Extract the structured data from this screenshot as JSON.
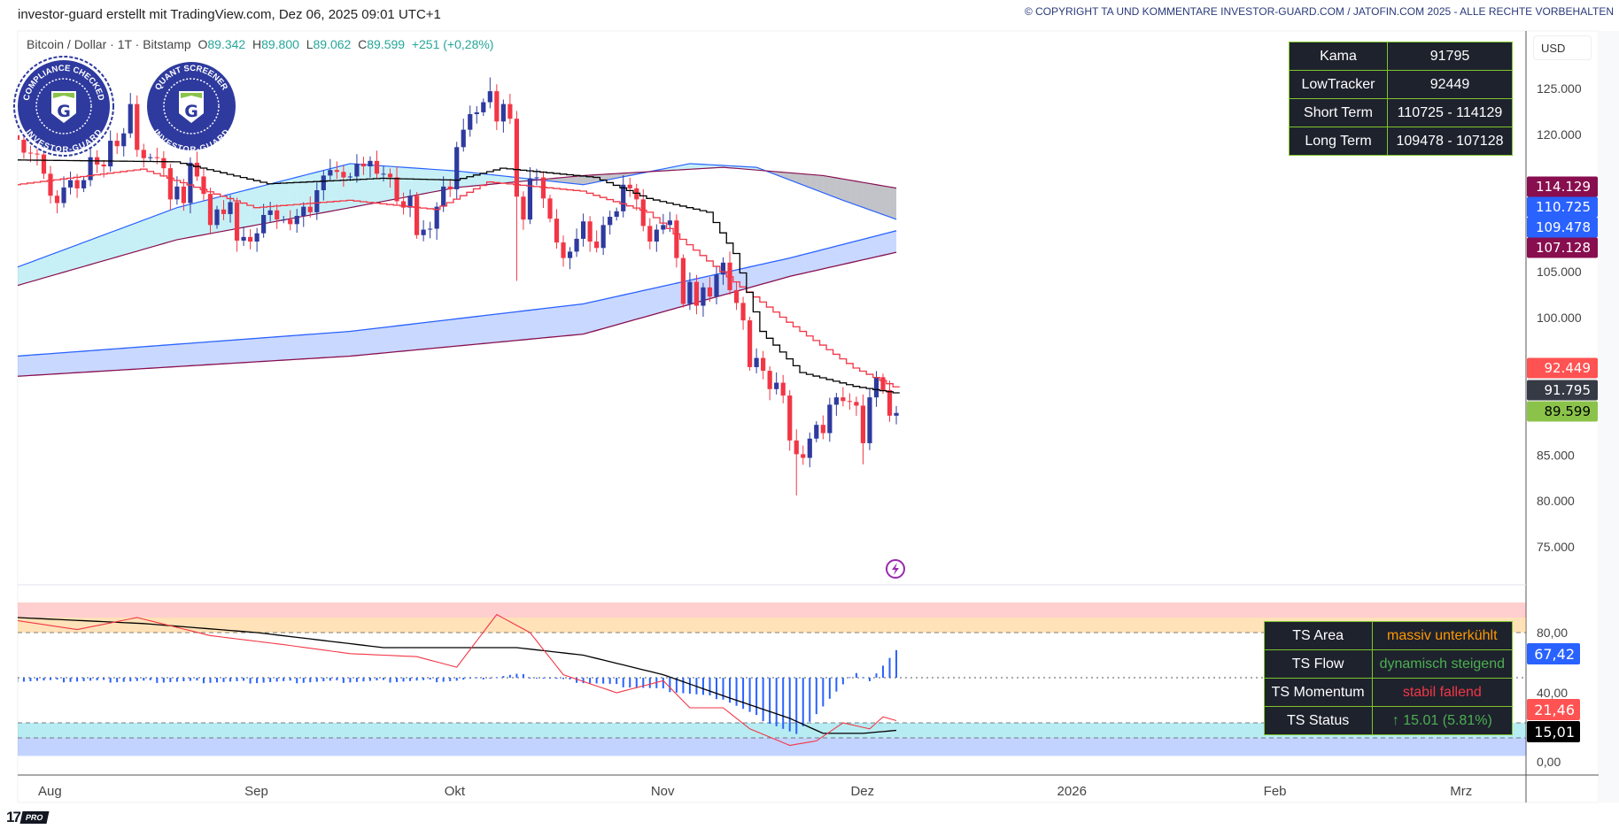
{
  "header": {
    "title": "investor-guard erstellt mit TradingView.com, Dez 06, 2025 09:01 UTC+1",
    "copyright": "© COPYRIGHT TA UND KOMMENTARE INVESTOR-GUARD.COM / JATOFIN.COM 2025 - ALLE RECHTE VORBEHALTEN"
  },
  "legend": {
    "symbol": "Bitcoin / Dollar · 1T · Bitstamp",
    "o_label": "O",
    "o": "89.342",
    "h_label": "H",
    "h": "89.800",
    "l_label": "L",
    "l": "89.062",
    "c_label": "C",
    "c": "89.599",
    "change": "+251 (+0,28%)"
  },
  "badges": {
    "compliance_top": "COMPLIANCE CHECKED",
    "compliance_bottom": "INVESTOR-GUARD",
    "quant_top": "QUANT SCREENER",
    "quant_bottom": "INVESTOR-GUARD",
    "letter": "G"
  },
  "info_table": [
    {
      "label": "Kama",
      "value": "91795"
    },
    {
      "label": "LowTracker",
      "value": "92449"
    },
    {
      "label": "Short Term",
      "value": "110725 - 114129"
    },
    {
      "label": "Long Term",
      "value": "109478 - 107128"
    }
  ],
  "ts_table": [
    {
      "label": "TS Area",
      "value": "massiv unterkühlt",
      "color": "#ff9800"
    },
    {
      "label": "TS Flow",
      "value": "dynamisch steigend",
      "color": "#4caf50"
    },
    {
      "label": "TS Momentum",
      "value": "stabil fallend",
      "color": "#f23645"
    },
    {
      "label": "TS Status",
      "value": "↑ 15.01 (5.81%)",
      "color": "#4caf50"
    }
  ],
  "price_axis": {
    "currency": "USD",
    "ticks": [
      {
        "label": "125.000",
        "value": 125
      },
      {
        "label": "120.000",
        "value": 120
      },
      {
        "label": "105.000",
        "value": 105
      },
      {
        "label": "100.000",
        "value": 100
      },
      {
        "label": "85.000",
        "value": 85
      },
      {
        "label": "80.000",
        "value": 80
      },
      {
        "label": "75.000",
        "value": 75
      }
    ],
    "markers": [
      {
        "label": "114.129",
        "value": 114.129,
        "bg": "#880e4f",
        "fg": "#ffffff"
      },
      {
        "label": "110.725",
        "value": 110.725,
        "bg": "#2962ff",
        "fg": "#ffffff"
      },
      {
        "label": "109.478",
        "value": 109.478,
        "bg": "#2962ff",
        "fg": "#ffffff"
      },
      {
        "label": "107.128",
        "value": 107.128,
        "bg": "#880e4f",
        "fg": "#ffffff"
      },
      {
        "label": "92.449",
        "value": 92.449,
        "bg": "#ff5252",
        "fg": "#ffffff"
      },
      {
        "label": "91.795",
        "value": 91.795,
        "bg": "#363a45",
        "fg": "#ffffff"
      },
      {
        "label": "89.599",
        "value": 89.599,
        "bg": "#8bc34a",
        "fg": "#000000"
      }
    ]
  },
  "indicator_axis": {
    "ticks": [
      {
        "label": "80,00",
        "value": 80
      },
      {
        "label": "40,00",
        "value": 40
      },
      {
        "label": "0,00",
        "value": 0
      }
    ],
    "markers": [
      {
        "label": "67,42",
        "value": 67.42,
        "bg": "#2962ff",
        "fg": "#ffffff"
      },
      {
        "label": "21,46",
        "value": 21.46,
        "bg": "#ff5252",
        "fg": "#ffffff"
      },
      {
        "label": "15,01",
        "value": 15.01,
        "bg": "#000000",
        "fg": "#ffffff"
      }
    ]
  },
  "time_axis": [
    {
      "label": "Aug",
      "date": "2025-08-01"
    },
    {
      "label": "Sep",
      "date": "2025-09-01"
    },
    {
      "label": "Okt",
      "date": "2025-10-01"
    },
    {
      "label": "Nov",
      "date": "2025-11-01"
    },
    {
      "label": "Dez",
      "date": "2025-12-01"
    },
    {
      "label": "2026",
      "date": "2026-01-01"
    },
    {
      "label": "Feb",
      "date": "2026-02-01"
    },
    {
      "label": "Mrz",
      "date": "2026-03-01"
    }
  ],
  "colors": {
    "up": "#2e3a9e",
    "down": "#f23645",
    "kama": "#000000",
    "lowtracker": "#f23645",
    "short_upper": "#2962ff",
    "short_lower": "#880e4f",
    "long_upper": "#2962ff",
    "long_lower": "#880e4f"
  },
  "chart_data": {
    "type": "candlestick",
    "unit": "USD (thousands)",
    "start_date": "2025-07-27",
    "closes": [
      119.4,
      118.0,
      117.9,
      117.8,
      115.7,
      113.3,
      112.5,
      114.2,
      115.0,
      114.1,
      115.0,
      117.5,
      116.7,
      116.5,
      119.3,
      118.7,
      120.1,
      123.3,
      118.3,
      117.4,
      117.5,
      117.4,
      116.3,
      112.9,
      114.3,
      112.5,
      116.9,
      115.4,
      113.5,
      110.1,
      111.8,
      111.3,
      112.6,
      108.4,
      108.8,
      108.3,
      109.2,
      111.2,
      111.7,
      110.7,
      110.7,
      110.2,
      111.1,
      112.1,
      111.5,
      113.9,
      115.5,
      116.1,
      115.9,
      115.3,
      115.4,
      116.8,
      116.5,
      117.1,
      115.7,
      115.7,
      115.3,
      112.7,
      112.0,
      113.3,
      109.0,
      109.6,
      109.7,
      112.1,
      114.3,
      114.0,
      118.6,
      120.5,
      122.2,
      122.4,
      123.5,
      124.7,
      121.4,
      123.3,
      121.7,
      113.2,
      110.7,
      115.2,
      115.3,
      113.0,
      110.8,
      108.2,
      106.5,
      107.2,
      108.6,
      110.5,
      108.3,
      107.6,
      110.1,
      111.0,
      111.6,
      114.5,
      114.1,
      112.9,
      110.0,
      108.3,
      109.6,
      110.1,
      110.6,
      106.5,
      101.5,
      103.9,
      101.3,
      103.3,
      102.3,
      104.7,
      106.0,
      103.0,
      101.6,
      99.7,
      94.6,
      95.6,
      94.2,
      92.2,
      92.9,
      91.5,
      86.6,
      85.1,
      84.7,
      86.8,
      88.3,
      87.4,
      90.5,
      91.3,
      90.9,
      90.8,
      90.4,
      86.3,
      91.3,
      93.5,
      92.1,
      89.3,
      89.6
    ],
    "notable_lows": {
      "2025-10-10": 104.0,
      "2025-11-21": 80.6,
      "2025-12-01": 84.0
    },
    "notable_highs": {
      "2025-10-06": 126.2
    },
    "kama": [
      [
        "2025-07-27",
        117.2
      ],
      [
        "2025-08-20",
        117.0
      ],
      [
        "2025-09-03",
        114.6
      ],
      [
        "2025-09-20",
        115.2
      ],
      [
        "2025-10-01",
        115.0
      ],
      [
        "2025-10-08",
        116.3
      ],
      [
        "2025-10-22",
        115.3
      ],
      [
        "2025-10-30",
        113.0
      ],
      [
        "2025-11-08",
        111.5
      ],
      [
        "2025-11-12",
        107.0
      ],
      [
        "2025-11-16",
        98.5
      ],
      [
        "2025-11-22",
        94.0
      ],
      [
        "2025-11-30",
        92.5
      ],
      [
        "2025-12-06",
        91.795
      ]
    ],
    "lowtracker": [
      [
        "2025-07-27",
        114.5
      ],
      [
        "2025-08-15",
        116.2
      ],
      [
        "2025-09-01",
        112.0
      ],
      [
        "2025-09-15",
        112.8
      ],
      [
        "2025-09-28",
        111.8
      ],
      [
        "2025-10-06",
        114.8
      ],
      [
        "2025-10-20",
        113.8
      ],
      [
        "2025-10-30",
        111.5
      ],
      [
        "2025-11-10",
        105.0
      ],
      [
        "2025-11-20",
        99.5
      ],
      [
        "2025-11-30",
        94.5
      ],
      [
        "2025-12-06",
        92.449
      ]
    ],
    "short_term_upper": [
      [
        "2025-07-27",
        105.5
      ],
      [
        "2025-08-20",
        112.0
      ],
      [
        "2025-09-15",
        116.8
      ],
      [
        "2025-10-01",
        116.0
      ],
      [
        "2025-10-20",
        114.5
      ],
      [
        "2025-11-05",
        116.8
      ],
      [
        "2025-11-15",
        116.4
      ],
      [
        "2025-11-28",
        112.8
      ],
      [
        "2025-12-06",
        110.725
      ]
    ],
    "short_term_lower": [
      [
        "2025-07-27",
        103.5
      ],
      [
        "2025-08-20",
        108.5
      ],
      [
        "2025-09-15",
        112.0
      ],
      [
        "2025-10-01",
        114.2
      ],
      [
        "2025-10-20",
        115.5
      ],
      [
        "2025-11-10",
        116.4
      ],
      [
        "2025-11-25",
        115.5
      ],
      [
        "2025-12-06",
        114.129
      ]
    ],
    "long_term_upper": [
      [
        "2025-07-27",
        95.8
      ],
      [
        "2025-09-15",
        98.5
      ],
      [
        "2025-10-20",
        101.5
      ],
      [
        "2025-11-20",
        106.5
      ],
      [
        "2025-12-06",
        109.478
      ]
    ],
    "long_term_lower": [
      [
        "2025-07-27",
        93.6
      ],
      [
        "2025-09-15",
        95.8
      ],
      [
        "2025-10-20",
        98.2
      ],
      [
        "2025-11-20",
        104.5
      ],
      [
        "2025-12-06",
        107.128
      ]
    ],
    "indicator": {
      "levels": {
        "overbought": 80,
        "mid": 50,
        "oversold": 20,
        "extreme_oversold": 10
      },
      "oscillator": [
        [
          "2025-07-27",
          88
        ],
        [
          "2025-08-05",
          82
        ],
        [
          "2025-08-14",
          90
        ],
        [
          "2025-08-25",
          78
        ],
        [
          "2025-09-05",
          72
        ],
        [
          "2025-09-15",
          66
        ],
        [
          "2025-09-25",
          64
        ],
        [
          "2025-10-01",
          57
        ],
        [
          "2025-10-07",
          92
        ],
        [
          "2025-10-12",
          80
        ],
        [
          "2025-10-17",
          52
        ],
        [
          "2025-10-25",
          40
        ],
        [
          "2025-11-01",
          48
        ],
        [
          "2025-11-05",
          30
        ],
        [
          "2025-11-10",
          30
        ],
        [
          "2025-11-14",
          16
        ],
        [
          "2025-11-20",
          5
        ],
        [
          "2025-11-24",
          8
        ],
        [
          "2025-11-28",
          20
        ],
        [
          "2025-12-02",
          16
        ],
        [
          "2025-12-04",
          24
        ],
        [
          "2025-12-06",
          21.46
        ]
      ],
      "signal": [
        [
          "2025-07-27",
          90
        ],
        [
          "2025-08-15",
          86
        ],
        [
          "2025-09-01",
          80
        ],
        [
          "2025-09-20",
          70
        ],
        [
          "2025-10-10",
          70
        ],
        [
          "2025-10-20",
          65
        ],
        [
          "2025-11-01",
          52
        ],
        [
          "2025-11-10",
          38
        ],
        [
          "2025-11-20",
          23
        ],
        [
          "2025-11-25",
          13
        ],
        [
          "2025-12-01",
          13
        ],
        [
          "2025-12-06",
          15.01
        ]
      ],
      "histogram": [
        [
          "2025-07-27",
          48
        ],
        [
          "2025-09-01",
          47
        ],
        [
          "2025-10-01",
          48
        ],
        [
          "2025-10-10",
          52
        ],
        [
          "2025-10-20",
          47
        ],
        [
          "2025-11-01",
          42
        ],
        [
          "2025-11-10",
          36
        ],
        [
          "2025-11-16",
          22
        ],
        [
          "2025-11-21",
          12
        ],
        [
          "2025-11-26",
          36
        ],
        [
          "2025-11-30",
          54
        ],
        [
          "2025-12-02",
          48
        ],
        [
          "2025-12-06",
          67.42
        ]
      ]
    }
  }
}
